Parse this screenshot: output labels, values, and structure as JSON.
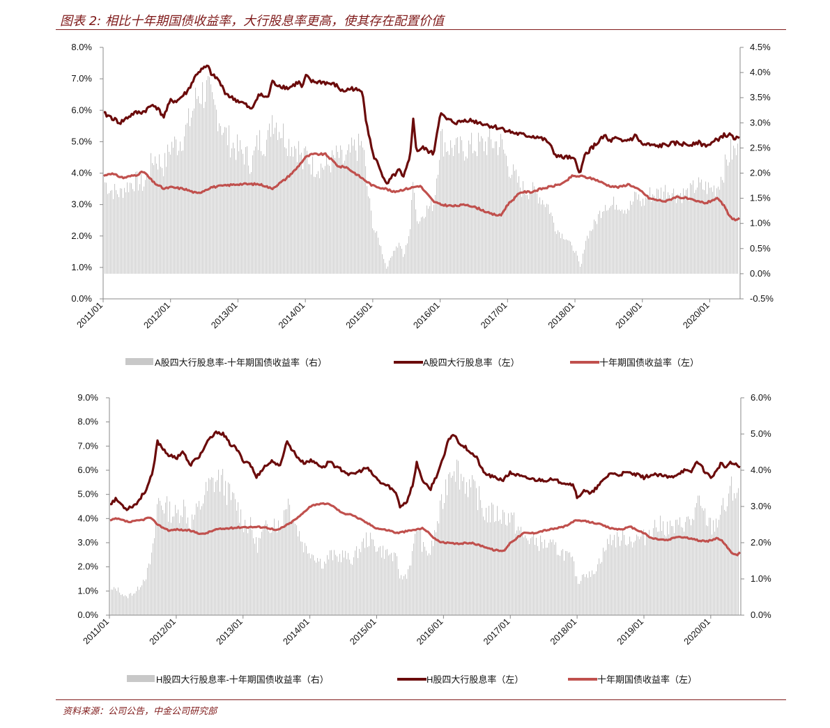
{
  "figure_title": "图表 2:  相比十年期国债收益率，大行股息率更高，使其存在配置价值",
  "source": "资料来源：公司公告，中金公司研究部",
  "colors": {
    "accent": "#7f1a1a",
    "dividend": "#6b0b0b",
    "bond": "#c0504d",
    "spread": "#c8c8c8"
  },
  "chart_data": [
    {
      "type": "line",
      "panel": "A",
      "x_ticks": [
        "2011/01",
        "2012/01",
        "2013/01",
        "2014/01",
        "2015/01",
        "2016/01",
        "2017/01",
        "2018/01",
        "2019/01",
        "2020/01"
      ],
      "x_range": [
        2011.0,
        2020.45
      ],
      "y_left_ticks": [
        "0.0%",
        "1.0%",
        "2.0%",
        "3.0%",
        "4.0%",
        "5.0%",
        "6.0%",
        "7.0%",
        "8.0%"
      ],
      "y_left_range": [
        0,
        8
      ],
      "y_right_ticks": [
        "-0.5%",
        "0.0%",
        "0.5%",
        "1.0%",
        "1.5%",
        "2.0%",
        "2.5%",
        "3.0%",
        "3.5%",
        "4.0%",
        "4.5%"
      ],
      "y_right_range": [
        -0.5,
        4.5
      ],
      "series": [
        {
          "name": "A股四大行股息率（左）",
          "kind": "line",
          "axis": "left",
          "color": "#6b0b0b",
          "x": [
            2011.0,
            2011.1,
            2011.25,
            2011.45,
            2011.6,
            2011.75,
            2011.9,
            2012.0,
            2012.1,
            2012.25,
            2012.4,
            2012.55,
            2012.62,
            2012.7,
            2012.8,
            2012.9,
            2013.0,
            2013.1,
            2013.2,
            2013.3,
            2013.45,
            2013.5,
            2013.6,
            2013.75,
            2013.9,
            2013.96,
            2014.0,
            2014.1,
            2014.25,
            2014.45,
            2014.55,
            2014.7,
            2014.8,
            2014.85,
            2014.9,
            2015.0,
            2015.1,
            2015.2,
            2015.3,
            2015.4,
            2015.45,
            2015.55,
            2015.6,
            2015.65,
            2015.75,
            2015.9,
            2016.0,
            2016.1,
            2016.25,
            2016.4,
            2016.6,
            2016.75,
            2016.95,
            2017.05,
            2017.25,
            2017.45,
            2017.6,
            2017.7,
            2017.8,
            2017.9,
            2018.0,
            2018.08,
            2018.15,
            2018.25,
            2018.35,
            2018.45,
            2018.5,
            2018.6,
            2018.7,
            2018.85,
            2018.9,
            2019.0,
            2019.1,
            2019.2,
            2019.35,
            2019.5,
            2019.7,
            2019.8,
            2019.9,
            2020.0,
            2020.1,
            2020.2,
            2020.3,
            2020.4,
            2020.45
          ],
          "y": [
            5.9,
            5.8,
            5.6,
            5.9,
            5.95,
            6.2,
            5.8,
            6.3,
            6.3,
            6.6,
            7.2,
            7.4,
            7.1,
            7.0,
            6.6,
            6.4,
            6.3,
            6.2,
            6.0,
            6.5,
            6.4,
            6.9,
            6.8,
            6.7,
            6.9,
            6.7,
            7.1,
            6.9,
            6.9,
            6.8,
            6.6,
            6.7,
            6.6,
            6.6,
            5.7,
            4.6,
            4.2,
            3.6,
            3.9,
            4.1,
            3.8,
            4.5,
            5.7,
            4.7,
            4.8,
            4.6,
            5.9,
            5.7,
            5.6,
            5.7,
            5.6,
            5.5,
            5.4,
            5.3,
            5.2,
            5.15,
            5.0,
            4.6,
            4.5,
            4.5,
            4.4,
            4.0,
            4.6,
            4.8,
            5.0,
            5.2,
            5.0,
            5.1,
            5.0,
            5.1,
            5.2,
            4.9,
            4.9,
            4.85,
            4.9,
            4.95,
            4.9,
            5.0,
            4.9,
            4.9,
            5.05,
            5.2,
            5.2,
            5.1,
            5.05
          ]
        },
        {
          "name": "十年期国债收益率（左）",
          "kind": "line",
          "axis": "left",
          "color": "#c0504d",
          "x": [
            2011.0,
            2011.1,
            2011.3,
            2011.5,
            2011.6,
            2011.75,
            2011.9,
            2012.0,
            2012.2,
            2012.4,
            2012.6,
            2012.8,
            2013.0,
            2013.2,
            2013.3,
            2013.4,
            2013.5,
            2013.7,
            2013.85,
            2014.0,
            2014.1,
            2014.3,
            2014.5,
            2014.6,
            2014.8,
            2015.0,
            2015.2,
            2015.3,
            2015.5,
            2015.7,
            2015.9,
            2016.0,
            2016.2,
            2016.4,
            2016.6,
            2016.75,
            2016.9,
            2017.0,
            2017.2,
            2017.35,
            2017.5,
            2017.7,
            2017.85,
            2017.95,
            2018.1,
            2018.3,
            2018.5,
            2018.65,
            2018.8,
            2019.0,
            2019.1,
            2019.2,
            2019.35,
            2019.5,
            2019.65,
            2019.8,
            2019.95,
            2020.05,
            2020.1,
            2020.2,
            2020.3,
            2020.4,
            2020.45
          ],
          "y": [
            3.9,
            4.0,
            3.85,
            3.95,
            4.05,
            3.7,
            3.5,
            3.55,
            3.5,
            3.35,
            3.55,
            3.6,
            3.65,
            3.65,
            3.65,
            3.6,
            3.5,
            3.8,
            4.1,
            4.5,
            4.6,
            4.6,
            4.2,
            4.2,
            3.9,
            3.6,
            3.5,
            3.4,
            3.5,
            3.6,
            3.1,
            3.0,
            2.95,
            3.0,
            2.85,
            2.7,
            2.65,
            3.0,
            3.4,
            3.4,
            3.5,
            3.6,
            3.7,
            3.9,
            3.9,
            3.8,
            3.6,
            3.55,
            3.65,
            3.4,
            3.2,
            3.15,
            3.1,
            3.25,
            3.2,
            3.1,
            3.05,
            3.15,
            3.2,
            3.0,
            2.6,
            2.5,
            2.6
          ]
        },
        {
          "name": "A股四大行股息率-十年期国债收益率（右）",
          "kind": "bars",
          "axis": "right",
          "color": "#c8c8c8"
        }
      ],
      "legend": [
        "A股四大行股息率-十年期国债收益率（右）",
        "A股四大行股息率（左）",
        "十年期国债收益率（左）"
      ],
      "legend_position": "bottom",
      "grid": false
    },
    {
      "type": "line",
      "panel": "H",
      "x_ticks": [
        "2011/01",
        "2012/01",
        "2013/01",
        "2014/01",
        "2015/01",
        "2016/01",
        "2017/01",
        "2018/01",
        "2019/01",
        "2020/01"
      ],
      "x_range": [
        2011.0,
        2020.45
      ],
      "y_left_ticks": [
        "0.0%",
        "1.0%",
        "2.0%",
        "3.0%",
        "4.0%",
        "5.0%",
        "6.0%",
        "7.0%",
        "8.0%",
        "9.0%"
      ],
      "y_left_range": [
        0,
        9
      ],
      "y_right_ticks": [
        "0.0%",
        "1.0%",
        "2.0%",
        "3.0%",
        "4.0%",
        "5.0%",
        "6.0%"
      ],
      "y_right_range": [
        0,
        6
      ],
      "series": [
        {
          "name": "H股四大行股息率（左）",
          "kind": "line",
          "axis": "left",
          "color": "#6b0b0b",
          "x": [
            2011.0,
            2011.1,
            2011.25,
            2011.4,
            2011.55,
            2011.65,
            2011.72,
            2011.8,
            2011.9,
            2012.0,
            2012.1,
            2012.2,
            2012.35,
            2012.5,
            2012.62,
            2012.7,
            2012.8,
            2012.9,
            2013.0,
            2013.1,
            2013.2,
            2013.3,
            2013.45,
            2013.55,
            2013.65,
            2013.8,
            2013.9,
            2014.0,
            2014.1,
            2014.2,
            2014.3,
            2014.4,
            2014.5,
            2014.6,
            2014.7,
            2014.85,
            2014.95,
            2015.05,
            2015.2,
            2015.3,
            2015.35,
            2015.45,
            2015.55,
            2015.6,
            2015.7,
            2015.8,
            2015.9,
            2016.0,
            2016.08,
            2016.15,
            2016.25,
            2016.35,
            2016.5,
            2016.6,
            2016.75,
            2016.9,
            2017.0,
            2017.2,
            2017.4,
            2017.6,
            2017.8,
            2017.95,
            2018.0,
            2018.1,
            2018.2,
            2018.3,
            2018.4,
            2018.5,
            2018.6,
            2018.75,
            2018.9,
            2019.0,
            2019.1,
            2019.2,
            2019.4,
            2019.6,
            2019.7,
            2019.8,
            2019.9,
            2020.0,
            2020.1,
            2020.15,
            2020.2,
            2020.3,
            2020.4,
            2020.45
          ],
          "y": [
            4.6,
            4.8,
            4.4,
            4.6,
            5.2,
            5.9,
            7.2,
            6.9,
            6.6,
            6.5,
            6.8,
            6.2,
            6.6,
            7.3,
            7.6,
            7.5,
            7.1,
            6.9,
            6.4,
            6.3,
            5.7,
            6.1,
            6.4,
            6.1,
            7.2,
            6.6,
            6.3,
            6.4,
            6.3,
            6.1,
            6.4,
            6.1,
            6.0,
            5.8,
            5.9,
            6.1,
            5.8,
            5.5,
            5.3,
            5.0,
            4.5,
            4.7,
            5.5,
            6.3,
            5.5,
            5.2,
            5.8,
            6.5,
            7.3,
            7.5,
            7.1,
            6.9,
            6.5,
            5.9,
            5.7,
            5.6,
            5.9,
            5.7,
            5.6,
            5.6,
            5.5,
            5.4,
            4.8,
            5.2,
            5.0,
            5.3,
            5.6,
            5.9,
            5.8,
            5.9,
            5.8,
            5.7,
            5.8,
            5.8,
            5.7,
            6.0,
            5.9,
            6.4,
            6.0,
            5.7,
            6.0,
            6.3,
            6.1,
            6.3,
            6.2,
            6.1
          ]
        },
        {
          "name": "十年期国债收益率（左）",
          "kind": "line",
          "axis": "left",
          "color": "#c0504d",
          "x": [
            2011.0,
            2011.1,
            2011.3,
            2011.5,
            2011.6,
            2011.75,
            2011.9,
            2012.0,
            2012.2,
            2012.4,
            2012.6,
            2012.8,
            2013.0,
            2013.2,
            2013.3,
            2013.4,
            2013.5,
            2013.7,
            2013.85,
            2014.0,
            2014.1,
            2014.3,
            2014.5,
            2014.6,
            2014.8,
            2015.0,
            2015.2,
            2015.3,
            2015.5,
            2015.7,
            2015.9,
            2016.0,
            2016.2,
            2016.4,
            2016.6,
            2016.75,
            2016.9,
            2017.0,
            2017.2,
            2017.35,
            2017.5,
            2017.7,
            2017.85,
            2017.95,
            2018.1,
            2018.3,
            2018.5,
            2018.65,
            2018.8,
            2019.0,
            2019.1,
            2019.2,
            2019.35,
            2019.5,
            2019.65,
            2019.8,
            2019.95,
            2020.05,
            2020.1,
            2020.2,
            2020.3,
            2020.4,
            2020.45
          ],
          "y": [
            3.9,
            4.0,
            3.85,
            3.95,
            4.05,
            3.7,
            3.5,
            3.55,
            3.5,
            3.35,
            3.55,
            3.6,
            3.65,
            3.65,
            3.65,
            3.6,
            3.5,
            3.8,
            4.1,
            4.5,
            4.6,
            4.6,
            4.2,
            4.2,
            3.9,
            3.6,
            3.5,
            3.4,
            3.5,
            3.6,
            3.1,
            3.0,
            2.95,
            3.0,
            2.85,
            2.7,
            2.65,
            3.0,
            3.4,
            3.4,
            3.5,
            3.6,
            3.7,
            3.9,
            3.9,
            3.8,
            3.6,
            3.55,
            3.65,
            3.4,
            3.2,
            3.15,
            3.1,
            3.25,
            3.2,
            3.1,
            3.05,
            3.15,
            3.2,
            3.0,
            2.6,
            2.5,
            2.6
          ]
        },
        {
          "name": "H股四大行股息率-十年期国债收益率（右）",
          "kind": "bars",
          "axis": "right",
          "color": "#c8c8c8"
        }
      ],
      "legend": [
        "H股四大行股息率-十年期国债收益率（右）",
        "H股四大行股息率（左）",
        "十年期国债收益率（左）"
      ],
      "legend_position": "bottom",
      "grid": false
    }
  ]
}
